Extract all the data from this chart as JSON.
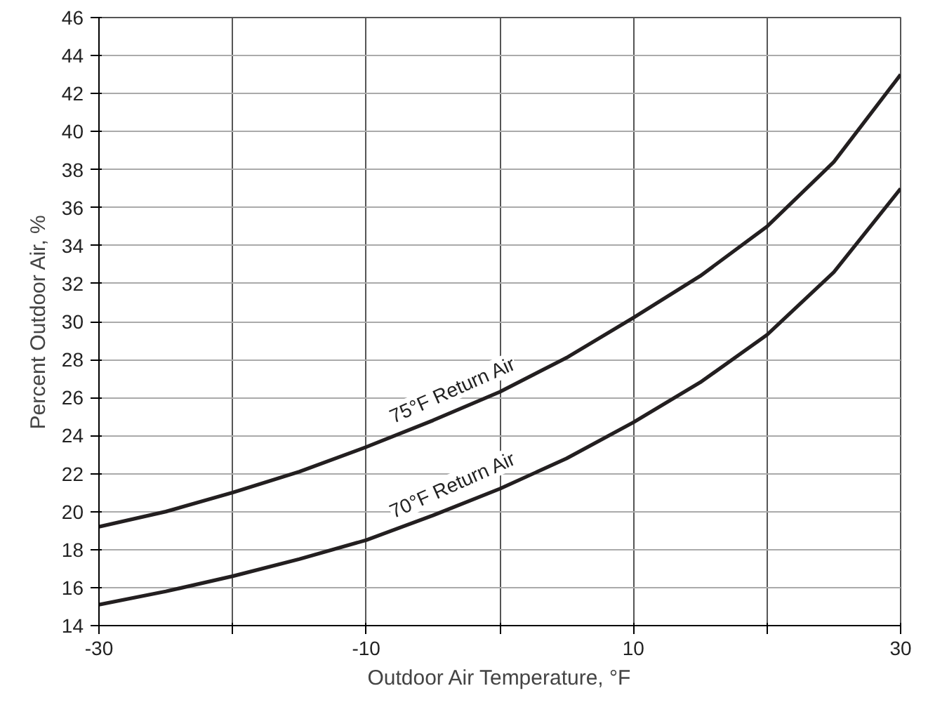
{
  "chart_data": {
    "type": "line",
    "xlabel": "Outdoor Air Temperature, °F",
    "ylabel": "Percent Outdoor Air, %",
    "x": [
      -30,
      -25,
      -20,
      -15,
      -10,
      -5,
      0,
      5,
      10,
      15,
      20,
      25,
      30
    ],
    "series": [
      {
        "color": "#231f20",
        "values": [
          19.2,
          20.0,
          21.0,
          22.1,
          23.4,
          24.8,
          26.3,
          28.1,
          30.2,
          32.4,
          35.0,
          38.4,
          43.0
        ]
      },
      {
        "color": "#231f20",
        "values": [
          15.1,
          15.8,
          16.6,
          17.5,
          18.5,
          19.8,
          21.2,
          22.8,
          24.7,
          26.8,
          29.3,
          32.6,
          37.0
        ]
      }
    ],
    "annotations": [
      "75°F Return Air",
      "70°F Return Air"
    ],
    "xlim": [
      -30,
      30
    ],
    "ylim": [
      14,
      46
    ],
    "xticks": [
      -30,
      {
        "value": -20,
        "label": null
      },
      -10,
      {
        "value": 0,
        "label": null
      },
      10,
      {
        "value": 20,
        "label": null
      },
      30
    ],
    "yticks": [
      14,
      16,
      18,
      20,
      22,
      24,
      26,
      28,
      30,
      32,
      34,
      36,
      38,
      40,
      42,
      44,
      46
    ],
    "grid": true,
    "line_style": "solid",
    "marker": "none"
  }
}
